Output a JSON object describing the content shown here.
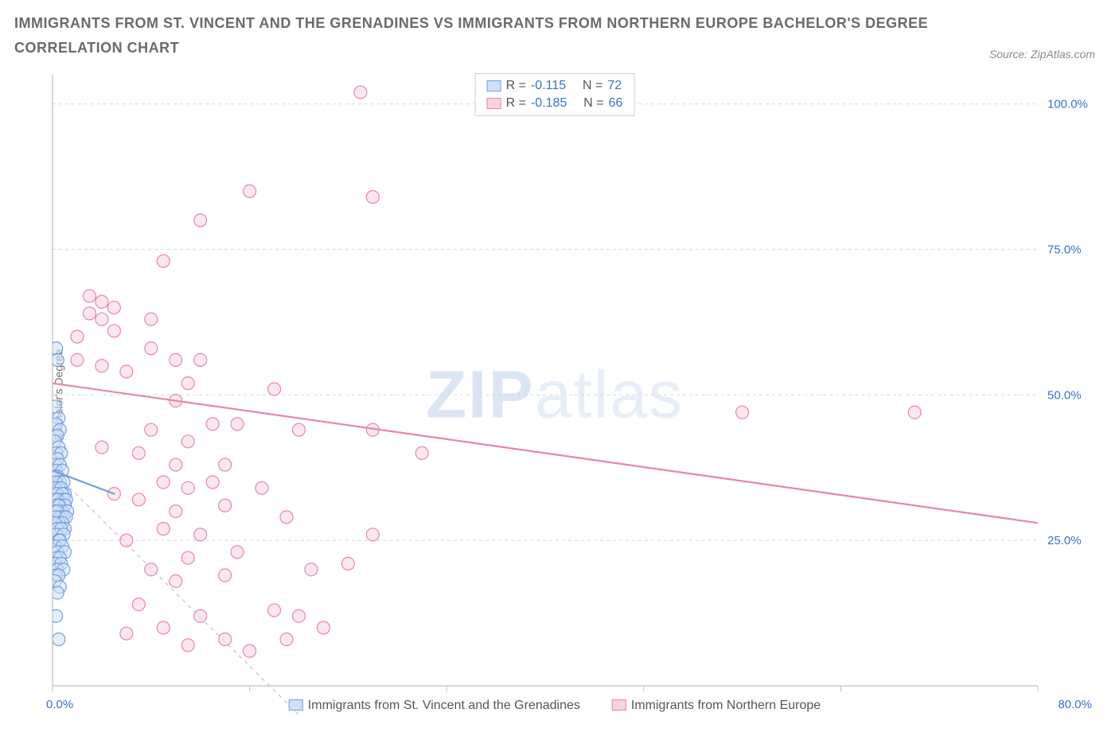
{
  "title_line1": "IMMIGRANTS FROM ST. VINCENT AND THE GRENADINES VS IMMIGRANTS FROM NORTHERN EUROPE BACHELOR'S DEGREE",
  "title_line2": "CORRELATION CHART",
  "source_label": "Source: ZipAtlas.com",
  "ylabel": "Bachelor's Degree",
  "watermark_bold": "ZIP",
  "watermark_light": "atlas",
  "chart": {
    "type": "scatter",
    "xlim": [
      0,
      80
    ],
    "ylim": [
      0,
      105
    ],
    "x_end_label": "80.0%",
    "x_start_label": "0.0%",
    "x_ticks": [
      0,
      16,
      32,
      48,
      64,
      80
    ],
    "y_ticks": [
      25,
      50,
      75,
      100
    ],
    "y_tick_labels": [
      "25.0%",
      "50.0%",
      "75.0%",
      "100.0%"
    ],
    "grid_color": "#d8d8d8",
    "axis_color": "#bfbfbf",
    "background_color": "#ffffff",
    "marker_radius": 8,
    "marker_stroke_width": 1.2,
    "line_width": 2.2,
    "dashed_line_color": "#b8b8b8",
    "series": [
      {
        "key": "svg_series",
        "label": "Immigrants from St. Vincent and the Grenadines",
        "fill": "#cfe0f7",
        "stroke": "#6f9fe0",
        "fill_opacity": 0.55,
        "R_label": "R =",
        "R_value": "-0.115",
        "N_label": "N =",
        "N_value": "72",
        "trend": {
          "x1": 0,
          "y1": 37,
          "x2": 5,
          "y2": 33
        },
        "points": [
          [
            0.3,
            58
          ],
          [
            0.4,
            56
          ],
          [
            0.2,
            48
          ],
          [
            0.5,
            46
          ],
          [
            0.3,
            45
          ],
          [
            0.6,
            44
          ],
          [
            0.4,
            43
          ],
          [
            0.2,
            42
          ],
          [
            0.5,
            41
          ],
          [
            0.3,
            40
          ],
          [
            0.7,
            40
          ],
          [
            0.4,
            39
          ],
          [
            0.2,
            38
          ],
          [
            0.6,
            38
          ],
          [
            0.3,
            37
          ],
          [
            0.8,
            37
          ],
          [
            0.4,
            36
          ],
          [
            0.2,
            36
          ],
          [
            0.6,
            35
          ],
          [
            0.3,
            35
          ],
          [
            0.9,
            35
          ],
          [
            0.5,
            34
          ],
          [
            0.2,
            34
          ],
          [
            0.7,
            34
          ],
          [
            0.4,
            33
          ],
          [
            1.0,
            33
          ],
          [
            0.3,
            33
          ],
          [
            0.8,
            33
          ],
          [
            0.5,
            32
          ],
          [
            0.2,
            32
          ],
          [
            0.9,
            32
          ],
          [
            0.4,
            32
          ],
          [
            1.1,
            32
          ],
          [
            0.6,
            31
          ],
          [
            0.3,
            31
          ],
          [
            1.0,
            31
          ],
          [
            0.5,
            31
          ],
          [
            0.8,
            30
          ],
          [
            0.2,
            30
          ],
          [
            1.2,
            30
          ],
          [
            0.4,
            30
          ],
          [
            0.9,
            29
          ],
          [
            0.6,
            29
          ],
          [
            0.3,
            29
          ],
          [
            1.1,
            29
          ],
          [
            0.5,
            28
          ],
          [
            0.8,
            28
          ],
          [
            0.2,
            28
          ],
          [
            1.0,
            27
          ],
          [
            0.4,
            27
          ],
          [
            0.7,
            27
          ],
          [
            0.3,
            26
          ],
          [
            0.9,
            26
          ],
          [
            0.5,
            25
          ],
          [
            0.6,
            25
          ],
          [
            0.2,
            24
          ],
          [
            0.8,
            24
          ],
          [
            0.4,
            23
          ],
          [
            1.0,
            23
          ],
          [
            0.3,
            22
          ],
          [
            0.6,
            22
          ],
          [
            0.2,
            21
          ],
          [
            0.7,
            21
          ],
          [
            0.4,
            20
          ],
          [
            0.9,
            20
          ],
          [
            0.3,
            19
          ],
          [
            0.5,
            19
          ],
          [
            0.2,
            18
          ],
          [
            0.6,
            17
          ],
          [
            0.4,
            16
          ],
          [
            0.3,
            12
          ],
          [
            0.5,
            8
          ]
        ]
      },
      {
        "key": "ne_series",
        "label": "Immigrants from Northern Europe",
        "fill": "#f8d4dd",
        "stroke": "#e588a3",
        "fill_opacity": 0.55,
        "R_label": "R =",
        "R_value": "-0.185",
        "N_label": "N =",
        "N_value": "66",
        "trend": {
          "x1": 0,
          "y1": 52,
          "x2": 80,
          "y2": 28
        },
        "points": [
          [
            25,
            102
          ],
          [
            16,
            85
          ],
          [
            26,
            84
          ],
          [
            12,
            80
          ],
          [
            9,
            73
          ],
          [
            3,
            67
          ],
          [
            4,
            66
          ],
          [
            5,
            65
          ],
          [
            3,
            64
          ],
          [
            4,
            63
          ],
          [
            8,
            63
          ],
          [
            5,
            61
          ],
          [
            2,
            60
          ],
          [
            8,
            58
          ],
          [
            10,
            56
          ],
          [
            12,
            56
          ],
          [
            2,
            56
          ],
          [
            4,
            55
          ],
          [
            6,
            54
          ],
          [
            11,
            52
          ],
          [
            10,
            49
          ],
          [
            18,
            51
          ],
          [
            56,
            47
          ],
          [
            70,
            47
          ],
          [
            13,
            45
          ],
          [
            15,
            45
          ],
          [
            20,
            44
          ],
          [
            26,
            44
          ],
          [
            8,
            44
          ],
          [
            11,
            42
          ],
          [
            30,
            40
          ],
          [
            4,
            41
          ],
          [
            7,
            40
          ],
          [
            14,
            38
          ],
          [
            10,
            38
          ],
          [
            13,
            35
          ],
          [
            17,
            34
          ],
          [
            9,
            35
          ],
          [
            11,
            34
          ],
          [
            5,
            33
          ],
          [
            7,
            32
          ],
          [
            14,
            31
          ],
          [
            10,
            30
          ],
          [
            19,
            29
          ],
          [
            26,
            26
          ],
          [
            9,
            27
          ],
          [
            12,
            26
          ],
          [
            6,
            25
          ],
          [
            15,
            23
          ],
          [
            11,
            22
          ],
          [
            24,
            21
          ],
          [
            21,
            20
          ],
          [
            8,
            20
          ],
          [
            14,
            19
          ],
          [
            10,
            18
          ],
          [
            18,
            13
          ],
          [
            20,
            12
          ],
          [
            22,
            10
          ],
          [
            7,
            14
          ],
          [
            12,
            12
          ],
          [
            19,
            8
          ],
          [
            9,
            10
          ],
          [
            14,
            8
          ],
          [
            6,
            9
          ],
          [
            11,
            7
          ],
          [
            16,
            6
          ]
        ]
      }
    ]
  },
  "colors": {
    "title_text": "#6a6a6a",
    "value_text": "#3a6fd8",
    "label_text": "#555555"
  }
}
